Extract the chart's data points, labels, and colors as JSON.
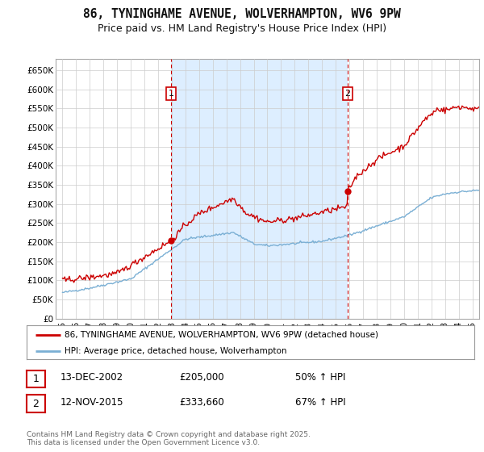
{
  "title": "86, TYNINGHAME AVENUE, WOLVERHAMPTON, WV6 9PW",
  "subtitle": "Price paid vs. HM Land Registry's House Price Index (HPI)",
  "title_fontsize": 10.5,
  "subtitle_fontsize": 9,
  "background_color": "#ffffff",
  "plot_bg_color": "#ffffff",
  "shade_color": "#ddeeff",
  "grid_color": "#cccccc",
  "legend_entry1": "86, TYNINGHAME AVENUE, WOLVERHAMPTON, WV6 9PW (detached house)",
  "legend_entry2": "HPI: Average price, detached house, Wolverhampton",
  "transaction1_date": "13-DEC-2002",
  "transaction1_price": "£205,000",
  "transaction1_hpi": "50% ↑ HPI",
  "transaction2_date": "12-NOV-2015",
  "transaction2_price": "£333,660",
  "transaction2_hpi": "67% ↑ HPI",
  "vline1_x": 2002.95,
  "vline2_x": 2015.87,
  "marker1_x": 2002.95,
  "marker1_y": 205000,
  "marker2_x": 2015.87,
  "marker2_y": 333660,
  "ylim": [
    0,
    680000
  ],
  "xlim": [
    1994.5,
    2025.5
  ],
  "yticks": [
    0,
    50000,
    100000,
    150000,
    200000,
    250000,
    300000,
    350000,
    400000,
    450000,
    500000,
    550000,
    600000,
    650000
  ],
  "ytick_labels": [
    "£0",
    "£50K",
    "£100K",
    "£150K",
    "£200K",
    "£250K",
    "£300K",
    "£350K",
    "£400K",
    "£450K",
    "£500K",
    "£550K",
    "£600K",
    "£650K"
  ],
  "xticks": [
    1995,
    1996,
    1997,
    1998,
    1999,
    2000,
    2001,
    2002,
    2003,
    2004,
    2005,
    2006,
    2007,
    2008,
    2009,
    2010,
    2011,
    2012,
    2013,
    2014,
    2015,
    2016,
    2017,
    2018,
    2019,
    2020,
    2021,
    2022,
    2023,
    2024,
    2025
  ],
  "xtick_labels": [
    "95",
    "96",
    "97",
    "98",
    "99",
    "00",
    "01",
    "02",
    "03",
    "04",
    "05",
    "06",
    "07",
    "08",
    "09",
    "10",
    "11",
    "12",
    "13",
    "14",
    "15",
    "16",
    "17",
    "18",
    "19",
    "20",
    "21",
    "22",
    "23",
    "24",
    "25"
  ],
  "red_line_color": "#cc0000",
  "blue_line_color": "#7aafd4",
  "footer_text": "Contains HM Land Registry data © Crown copyright and database right 2025.\nThis data is licensed under the Open Government Licence v3.0."
}
